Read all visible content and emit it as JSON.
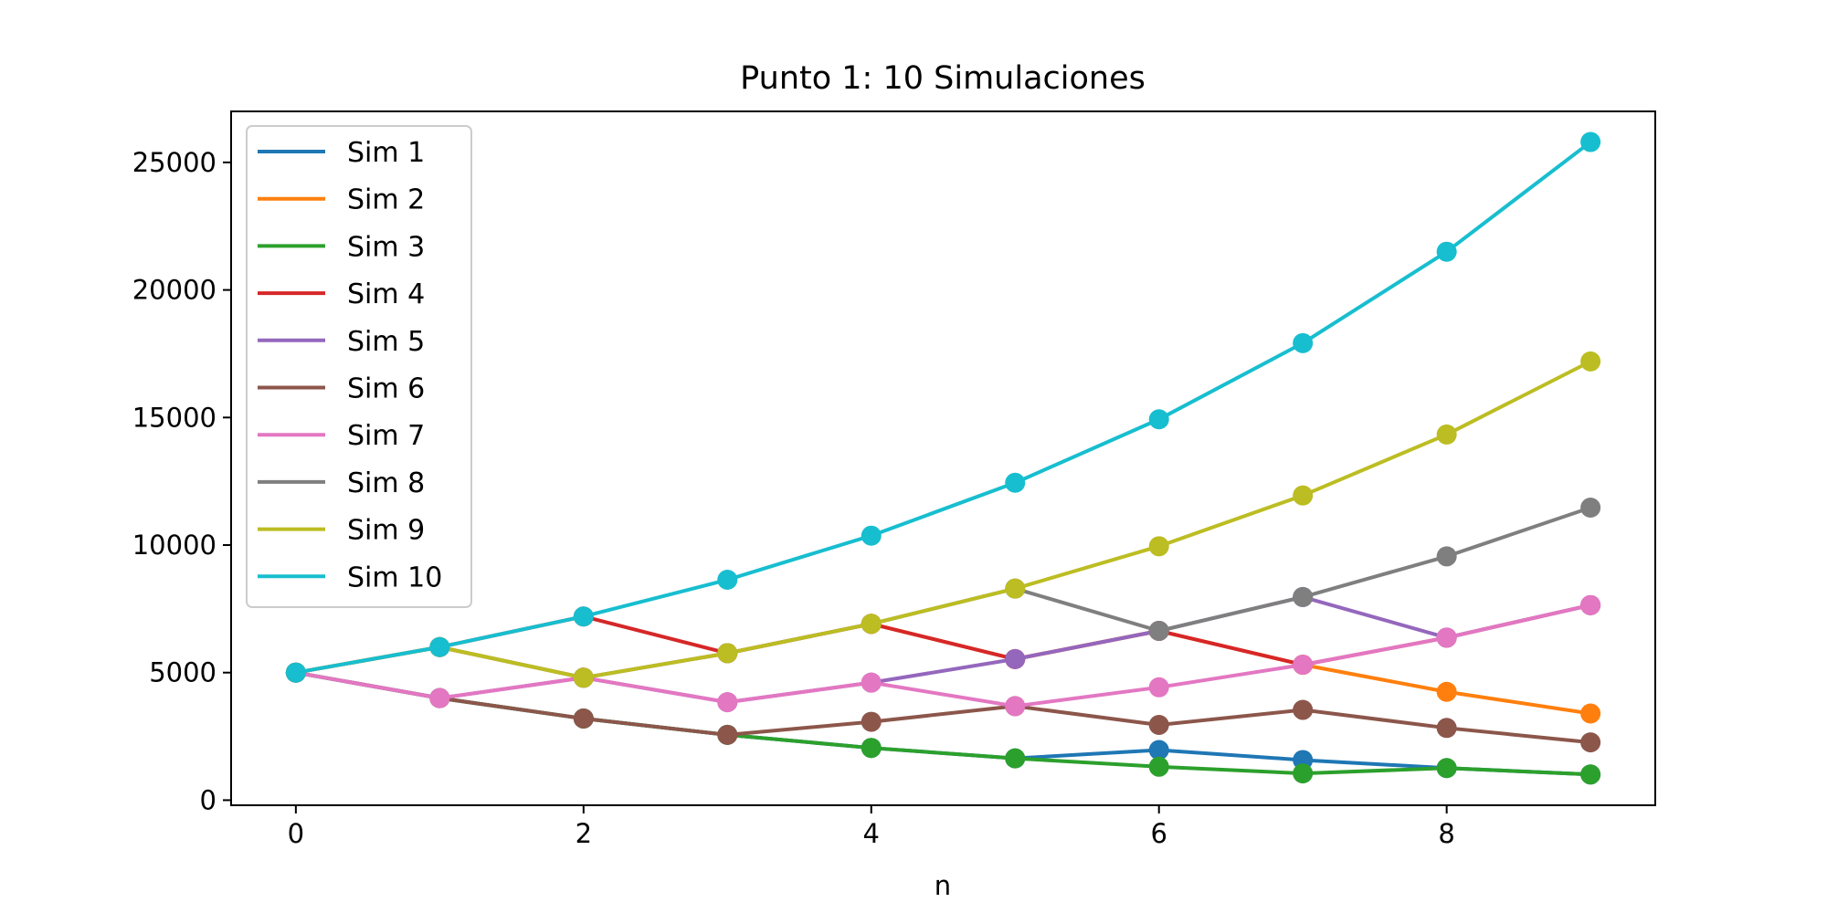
{
  "chart_data": {
    "type": "line",
    "title": "Punto 1: 10 Simulaciones",
    "xlabel": "n",
    "ylabel": "",
    "xlim": [
      -0.45,
      9.45
    ],
    "ylim": [
      -200,
      27000
    ],
    "xticks": [
      0,
      2,
      4,
      6,
      8
    ],
    "yticks": [
      0,
      5000,
      10000,
      15000,
      20000,
      25000
    ],
    "grid": false,
    "legend_position": "upper left",
    "x": [
      0,
      1,
      2,
      3,
      4,
      5,
      6,
      7,
      8,
      9
    ],
    "series": [
      {
        "name": "Sim 1",
        "color": "#1f77b4",
        "values": [
          5000,
          4000,
          3200,
          2560,
          2048,
          1638,
          1966,
          1573,
          1258,
          1007
        ]
      },
      {
        "name": "Sim 2",
        "color": "#ff7f0e",
        "values": [
          5000,
          6000,
          4800,
          5760,
          6912,
          5530,
          6636,
          5308,
          4247,
          3397
        ]
      },
      {
        "name": "Sim 3",
        "color": "#2ca02c",
        "values": [
          5000,
          4000,
          3200,
          2560,
          2048,
          1638,
          1311,
          1049,
          1258,
          1007
        ]
      },
      {
        "name": "Sim 4",
        "color": "#d62728",
        "values": [
          5000,
          6000,
          7200,
          5760,
          6912,
          5530,
          6636,
          5308,
          6370,
          7644
        ]
      },
      {
        "name": "Sim 5",
        "color": "#9467bd",
        "values": [
          5000,
          4000,
          4800,
          3840,
          4608,
          5530,
          6636,
          7963,
          6370,
          7644
        ]
      },
      {
        "name": "Sim 6",
        "color": "#8c564b",
        "values": [
          5000,
          4000,
          3200,
          2560,
          3072,
          3686,
          2949,
          3539,
          2831,
          2265
        ]
      },
      {
        "name": "Sim 7",
        "color": "#e377c2",
        "values": [
          5000,
          4000,
          4800,
          3840,
          4608,
          3686,
          4424,
          5308,
          6370,
          7644
        ]
      },
      {
        "name": "Sim 8",
        "color": "#7f7f7f",
        "values": [
          5000,
          6000,
          4800,
          5760,
          6912,
          8294,
          6636,
          7963,
          9556,
          11467
        ]
      },
      {
        "name": "Sim 9",
        "color": "#bcbd22",
        "values": [
          5000,
          6000,
          4800,
          5760,
          6912,
          8294,
          9953,
          11944,
          14333,
          17199
        ]
      },
      {
        "name": "Sim 10",
        "color": "#17becf",
        "values": [
          5000,
          6000,
          7200,
          8640,
          10368,
          12442,
          14930,
          17916,
          21499,
          25799
        ]
      }
    ]
  }
}
